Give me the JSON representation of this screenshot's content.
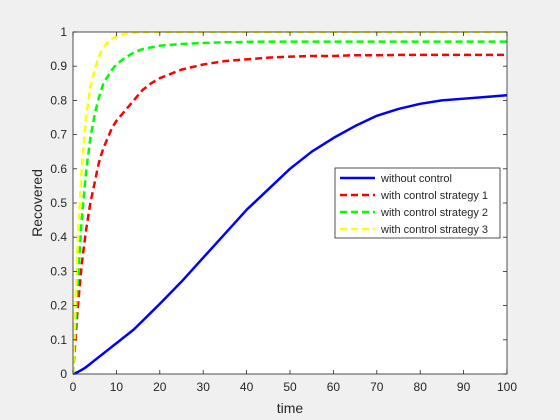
{
  "chart_data": {
    "type": "line",
    "title": "",
    "xlabel": "time",
    "ylabel": "Recovered",
    "xlim": [
      0,
      100
    ],
    "ylim": [
      0,
      1
    ],
    "xticks": [
      0,
      10,
      20,
      30,
      40,
      50,
      60,
      70,
      80,
      90,
      100
    ],
    "yticks": [
      0,
      0.1,
      0.2,
      0.3,
      0.4,
      0.5,
      0.6,
      0.7,
      0.8,
      0.9,
      1
    ],
    "grid": false,
    "legend_position": "right",
    "x": [
      0,
      1,
      2,
      3,
      4,
      5,
      6,
      7,
      8,
      9,
      10,
      12,
      14,
      16,
      18,
      20,
      25,
      30,
      35,
      40,
      45,
      50,
      55,
      60,
      65,
      70,
      75,
      80,
      85,
      90,
      95,
      100
    ],
    "series": [
      {
        "name": "without control",
        "color": "#0000ff",
        "style": "solid",
        "values": [
          0.0,
          0.005,
          0.012,
          0.02,
          0.03,
          0.04,
          0.05,
          0.06,
          0.07,
          0.08,
          0.09,
          0.11,
          0.13,
          0.155,
          0.18,
          0.205,
          0.27,
          0.34,
          0.41,
          0.48,
          0.54,
          0.6,
          0.65,
          0.69,
          0.725,
          0.755,
          0.775,
          0.79,
          0.8,
          0.805,
          0.81,
          0.815
        ]
      },
      {
        "name": "with control strategy 1",
        "color": "#ff0000",
        "style": "dashed",
        "values": [
          0.0,
          0.18,
          0.32,
          0.42,
          0.5,
          0.56,
          0.62,
          0.66,
          0.69,
          0.72,
          0.74,
          0.77,
          0.8,
          0.83,
          0.85,
          0.865,
          0.89,
          0.905,
          0.915,
          0.92,
          0.925,
          0.928,
          0.93,
          0.93,
          0.932,
          0.932,
          0.933,
          0.933,
          0.933,
          0.933,
          0.933,
          0.933
        ]
      },
      {
        "name": "with control strategy 2",
        "color": "#00ff00",
        "style": "dashed",
        "values": [
          0.0,
          0.25,
          0.45,
          0.59,
          0.69,
          0.76,
          0.81,
          0.85,
          0.87,
          0.89,
          0.905,
          0.925,
          0.94,
          0.95,
          0.955,
          0.96,
          0.965,
          0.968,
          0.97,
          0.971,
          0.972,
          0.972,
          0.972,
          0.972,
          0.972,
          0.972,
          0.972,
          0.972,
          0.972,
          0.972,
          0.972,
          0.972
        ]
      },
      {
        "name": "with control strategy 3",
        "color": "#ffff00",
        "style": "dashed",
        "values": [
          0.0,
          0.36,
          0.6,
          0.75,
          0.84,
          0.89,
          0.93,
          0.955,
          0.97,
          0.98,
          0.988,
          0.995,
          0.998,
          0.999,
          1.0,
          1.0,
          1.0,
          1.0,
          1.0,
          1.0,
          1.0,
          1.0,
          1.0,
          1.0,
          1.0,
          1.0,
          1.0,
          1.0,
          1.0,
          1.0,
          1.0,
          1.0
        ]
      }
    ]
  }
}
